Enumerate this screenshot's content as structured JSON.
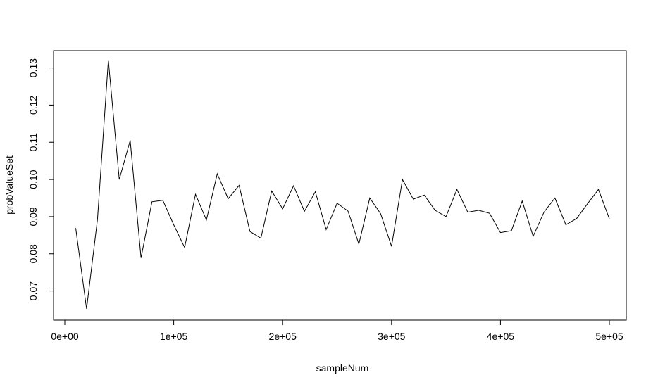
{
  "chart_data": {
    "type": "line",
    "xlabel": "sampleNum",
    "ylabel": "probValueSet",
    "xlim": [
      0,
      500000
    ],
    "ylim": [
      0.065,
      0.132
    ],
    "x_ticks": [
      {
        "value": 0,
        "label": "0e+00"
      },
      {
        "value": 100000,
        "label": "1e+05"
      },
      {
        "value": 200000,
        "label": "2e+05"
      },
      {
        "value": 300000,
        "label": "3e+05"
      },
      {
        "value": 400000,
        "label": "4e+05"
      },
      {
        "value": 500000,
        "label": "5e+05"
      }
    ],
    "y_ticks": [
      {
        "value": 0.07,
        "label": "0.07"
      },
      {
        "value": 0.08,
        "label": "0.08"
      },
      {
        "value": 0.09,
        "label": "0.09"
      },
      {
        "value": 0.1,
        "label": "0.10"
      },
      {
        "value": 0.11,
        "label": "0.11"
      },
      {
        "value": 0.12,
        "label": "0.12"
      },
      {
        "value": 0.13,
        "label": "0.13"
      }
    ],
    "x": [
      10000,
      20000,
      30000,
      40000,
      50000,
      60000,
      70000,
      80000,
      90000,
      100000,
      110000,
      120000,
      130000,
      140000,
      150000,
      160000,
      170000,
      180000,
      190000,
      200000,
      210000,
      220000,
      230000,
      240000,
      250000,
      260000,
      270000,
      280000,
      290000,
      300000,
      310000,
      320000,
      330000,
      340000,
      350000,
      360000,
      370000,
      380000,
      390000,
      400000,
      410000,
      420000,
      430000,
      440000,
      450000,
      460000,
      470000,
      480000,
      490000,
      500000
    ],
    "y": [
      0.0869,
      0.0652,
      0.0893,
      0.1321,
      0.1,
      0.1105,
      0.0789,
      0.094,
      0.0944,
      0.0878,
      0.0817,
      0.096,
      0.0891,
      0.1015,
      0.0948,
      0.0984,
      0.086,
      0.0842,
      0.0969,
      0.0921,
      0.0983,
      0.0914,
      0.0967,
      0.0865,
      0.0936,
      0.0915,
      0.0826,
      0.095,
      0.0908,
      0.082,
      0.1,
      0.0947,
      0.0958,
      0.0917,
      0.09,
      0.0973,
      0.0912,
      0.0917,
      0.0909,
      0.0857,
      0.0862,
      0.0942,
      0.0847,
      0.0912,
      0.095,
      0.0878,
      0.0895,
      0.0935,
      0.0973,
      0.0894
    ],
    "grid": false,
    "line_color": "#000000"
  }
}
